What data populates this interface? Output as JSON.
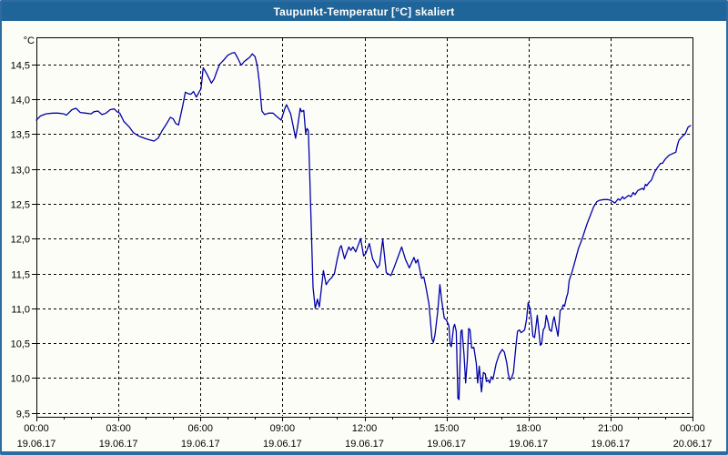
{
  "window": {
    "title": "Taupunkt-Temperatur [°C] skaliert",
    "titlebar_color": "#1f6599",
    "border_color": "#2b6ca3",
    "paper_color": "#fdfdf8"
  },
  "chart_data": {
    "type": "line",
    "title": "Taupunkt-Temperatur [°C] skaliert",
    "ylabel": "°C",
    "xlabel": "",
    "ylim": [
      9.4,
      14.9
    ],
    "y_tick_step": 0.5,
    "y_ticks": [
      14.5,
      14.0,
      13.5,
      13.0,
      12.5,
      12.0,
      11.5,
      11.0,
      10.5,
      10.0,
      9.5
    ],
    "decimal_separator": ",",
    "x_range_hours": [
      0,
      24
    ],
    "x_major_every_hours": 3,
    "x_minor_every_hours": 1,
    "x_ticks": [
      {
        "time": "00:00",
        "date": "19.06.17"
      },
      {
        "time": "03:00",
        "date": "19.06.17"
      },
      {
        "time": "06:00",
        "date": "19.06.17"
      },
      {
        "time": "09:00",
        "date": "19.06.17"
      },
      {
        "time": "12:00",
        "date": "19.06.17"
      },
      {
        "time": "15:00",
        "date": "19.06.17"
      },
      {
        "time": "18:00",
        "date": "19.06.17"
      },
      {
        "time": "21:00",
        "date": "19.06.17"
      },
      {
        "time": "00:00",
        "date": "20.06.17"
      }
    ],
    "grid": "dashed",
    "legend_position": "none",
    "line_color": "#0000aa",
    "axis_color": "#000000",
    "series": [
      {
        "name": "Taupunkt-Temperatur",
        "unit": "°C",
        "points": [
          [
            0,
            13.7
          ],
          [
            0.15,
            13.76
          ],
          [
            0.35,
            13.79
          ],
          [
            0.6,
            13.8
          ],
          [
            0.8,
            13.8
          ],
          [
            1,
            13.79
          ],
          [
            1.1,
            13.77
          ],
          [
            1.3,
            13.85
          ],
          [
            1.45,
            13.87
          ],
          [
            1.6,
            13.81
          ],
          [
            1.8,
            13.8
          ],
          [
            2,
            13.79
          ],
          [
            2.1,
            13.82
          ],
          [
            2.25,
            13.83
          ],
          [
            2.4,
            13.78
          ],
          [
            2.55,
            13.8
          ],
          [
            2.7,
            13.85
          ],
          [
            2.85,
            13.86
          ],
          [
            2.95,
            13.82
          ],
          [
            3.05,
            13.8
          ],
          [
            3.2,
            13.68
          ],
          [
            3.4,
            13.6
          ],
          [
            3.55,
            13.52
          ],
          [
            3.75,
            13.47
          ],
          [
            3.95,
            13.44
          ],
          [
            4.1,
            13.42
          ],
          [
            4.3,
            13.4
          ],
          [
            4.45,
            13.44
          ],
          [
            4.6,
            13.55
          ],
          [
            4.75,
            13.64
          ],
          [
            4.9,
            13.74
          ],
          [
            5,
            13.72
          ],
          [
            5.1,
            13.65
          ],
          [
            5.2,
            13.63
          ],
          [
            5.35,
            13.9
          ],
          [
            5.45,
            14.1
          ],
          [
            5.55,
            14.08
          ],
          [
            5.65,
            14.07
          ],
          [
            5.75,
            14.11
          ],
          [
            5.85,
            14.03
          ],
          [
            5.95,
            14.1
          ],
          [
            6.02,
            14.15
          ],
          [
            6.1,
            14.45
          ],
          [
            6.15,
            14.42
          ],
          [
            6.25,
            14.35
          ],
          [
            6.4,
            14.23
          ],
          [
            6.5,
            14.29
          ],
          [
            6.6,
            14.4
          ],
          [
            6.7,
            14.5
          ],
          [
            6.85,
            14.56
          ],
          [
            7,
            14.63
          ],
          [
            7.15,
            14.66
          ],
          [
            7.25,
            14.67
          ],
          [
            7.35,
            14.6
          ],
          [
            7.45,
            14.52
          ],
          [
            7.5,
            14.49
          ],
          [
            7.6,
            14.54
          ],
          [
            7.7,
            14.57
          ],
          [
            7.8,
            14.6
          ],
          [
            7.9,
            14.65
          ],
          [
            8,
            14.61
          ],
          [
            8.08,
            14.48
          ],
          [
            8.15,
            14.26
          ],
          [
            8.25,
            13.83
          ],
          [
            8.35,
            13.78
          ],
          [
            8.5,
            13.8
          ],
          [
            8.65,
            13.8
          ],
          [
            8.8,
            13.75
          ],
          [
            8.95,
            13.7
          ],
          [
            9.1,
            13.88
          ],
          [
            9.15,
            13.92
          ],
          [
            9.3,
            13.79
          ],
          [
            9.4,
            13.6
          ],
          [
            9.48,
            13.44
          ],
          [
            9.56,
            13.62
          ],
          [
            9.65,
            13.87
          ],
          [
            9.7,
            13.82
          ],
          [
            9.78,
            13.84
          ],
          [
            9.85,
            13.51
          ],
          [
            9.9,
            13.58
          ],
          [
            9.95,
            13.55
          ],
          [
            10.03,
            12.5
          ],
          [
            10.12,
            11.3
          ],
          [
            10.2,
            11
          ],
          [
            10.28,
            11.13
          ],
          [
            10.35,
            11.02
          ],
          [
            10.5,
            11.54
          ],
          [
            10.6,
            11.34
          ],
          [
            10.7,
            11.4
          ],
          [
            10.8,
            11.44
          ],
          [
            10.9,
            11.5
          ],
          [
            11,
            11.7
          ],
          [
            11.1,
            11.87
          ],
          [
            11.15,
            11.9
          ],
          [
            11.27,
            11.71
          ],
          [
            11.35,
            11.8
          ],
          [
            11.43,
            11.88
          ],
          [
            11.5,
            11.83
          ],
          [
            11.58,
            11.88
          ],
          [
            11.68,
            11.81
          ],
          [
            11.86,
            12
          ],
          [
            11.97,
            11.75
          ],
          [
            12.05,
            11.79
          ],
          [
            12.18,
            11.93
          ],
          [
            12.3,
            11.71
          ],
          [
            12.4,
            11.64
          ],
          [
            12.47,
            11.58
          ],
          [
            12.55,
            11.62
          ],
          [
            12.67,
            11.99
          ],
          [
            12.8,
            11.51
          ],
          [
            12.97,
            11.47
          ],
          [
            13.1,
            11.6
          ],
          [
            13.2,
            11.71
          ],
          [
            13.36,
            11.88
          ],
          [
            13.5,
            11.7
          ],
          [
            13.64,
            11.58
          ],
          [
            13.81,
            11.73
          ],
          [
            13.88,
            11.65
          ],
          [
            13.95,
            11.7
          ],
          [
            14.09,
            11.43
          ],
          [
            14.17,
            11.45
          ],
          [
            14.25,
            11.3
          ],
          [
            14.36,
            11.06
          ],
          [
            14.47,
            10.56
          ],
          [
            14.52,
            10.51
          ],
          [
            14.58,
            10.62
          ],
          [
            14.68,
            10.95
          ],
          [
            14.76,
            11.34
          ],
          [
            14.83,
            11.1
          ],
          [
            14.92,
            10.86
          ],
          [
            15,
            10.83
          ],
          [
            15.09,
            10.75
          ],
          [
            15.14,
            10.47
          ],
          [
            15.18,
            10.45
          ],
          [
            15.26,
            10.73
          ],
          [
            15.3,
            10.77
          ],
          [
            15.36,
            10.67
          ],
          [
            15.42,
            9.71
          ],
          [
            15.46,
            9.69
          ],
          [
            15.53,
            10.67
          ],
          [
            15.57,
            10.69
          ],
          [
            15.64,
            10.34
          ],
          [
            15.7,
            9.93
          ],
          [
            15.76,
            10.25
          ],
          [
            15.81,
            10.71
          ],
          [
            15.86,
            10.69
          ],
          [
            15.92,
            10.43
          ],
          [
            16,
            10.44
          ],
          [
            16.09,
            10.21
          ],
          [
            16.14,
            9.93
          ],
          [
            16.2,
            10.17
          ],
          [
            16.28,
            9.8
          ],
          [
            16.35,
            10.08
          ],
          [
            16.42,
            10.06
          ],
          [
            16.46,
            9.95
          ],
          [
            16.53,
            9.97
          ],
          [
            16.58,
            9.93
          ],
          [
            16.64,
            10.02
          ],
          [
            16.7,
            9.98
          ],
          [
            16.82,
            10.21
          ],
          [
            16.93,
            10.34
          ],
          [
            17.04,
            10.41
          ],
          [
            17.12,
            10.37
          ],
          [
            17.21,
            10.21
          ],
          [
            17.26,
            10.06
          ],
          [
            17.32,
            9.97
          ],
          [
            17.38,
            10
          ],
          [
            17.45,
            10.08
          ],
          [
            17.54,
            10.45
          ],
          [
            17.6,
            10.67
          ],
          [
            17.67,
            10.69
          ],
          [
            17.73,
            10.65
          ],
          [
            17.8,
            10.67
          ],
          [
            17.86,
            10.69
          ],
          [
            17.93,
            10.84
          ],
          [
            17.99,
            11.08
          ],
          [
            18.05,
            11
          ],
          [
            18.1,
            10.86
          ],
          [
            18.16,
            10.6
          ],
          [
            18.22,
            10.58
          ],
          [
            18.27,
            10.73
          ],
          [
            18.32,
            10.9
          ],
          [
            18.38,
            10.67
          ],
          [
            18.43,
            10.47
          ],
          [
            18.48,
            10.49
          ],
          [
            18.54,
            10.69
          ],
          [
            18.6,
            10.73
          ],
          [
            18.65,
            10.9
          ],
          [
            18.71,
            10.81
          ],
          [
            18.77,
            10.69
          ],
          [
            18.84,
            10.67
          ],
          [
            18.9,
            10.82
          ],
          [
            18.94,
            10.88
          ],
          [
            19,
            10.75
          ],
          [
            19.08,
            10.6
          ],
          [
            19.16,
            10.97
          ],
          [
            19.22,
            10.99
          ],
          [
            19.27,
            11.05
          ],
          [
            19.32,
            11.03
          ],
          [
            19.38,
            11.14
          ],
          [
            19.44,
            11.22
          ],
          [
            19.49,
            11.4
          ],
          [
            19.55,
            11.47
          ],
          [
            19.6,
            11.53
          ],
          [
            19.72,
            11.7
          ],
          [
            19.83,
            11.86
          ],
          [
            19.94,
            11.97
          ],
          [
            20.05,
            12.1
          ],
          [
            20.16,
            12.23
          ],
          [
            20.27,
            12.34
          ],
          [
            20.38,
            12.45
          ],
          [
            20.5,
            12.53
          ],
          [
            20.6,
            12.55
          ],
          [
            20.75,
            12.56
          ],
          [
            20.9,
            12.56
          ],
          [
            21,
            12.55
          ],
          [
            21.16,
            12.51
          ],
          [
            21.28,
            12.57
          ],
          [
            21.35,
            12.55
          ],
          [
            21.44,
            12.6
          ],
          [
            21.5,
            12.57
          ],
          [
            21.66,
            12.62
          ],
          [
            21.75,
            12.6
          ],
          [
            21.83,
            12.66
          ],
          [
            21.9,
            12.63
          ],
          [
            22,
            12.69
          ],
          [
            22.05,
            12.7
          ],
          [
            22.17,
            12.72
          ],
          [
            22.22,
            12.7
          ],
          [
            22.28,
            12.78
          ],
          [
            22.33,
            12.76
          ],
          [
            22.4,
            12.8
          ],
          [
            22.5,
            12.84
          ],
          [
            22.61,
            12.95
          ],
          [
            22.72,
            13.02
          ],
          [
            22.83,
            13.08
          ],
          [
            22.9,
            13.08
          ],
          [
            23,
            13.14
          ],
          [
            23.1,
            13.18
          ],
          [
            23.16,
            13.2
          ],
          [
            23.28,
            13.22
          ],
          [
            23.39,
            13.24
          ],
          [
            23.44,
            13.33
          ],
          [
            23.5,
            13.41
          ],
          [
            23.61,
            13.46
          ],
          [
            23.73,
            13.5
          ],
          [
            23.84,
            13.6
          ],
          [
            23.93,
            13.62
          ]
        ]
      }
    ]
  }
}
